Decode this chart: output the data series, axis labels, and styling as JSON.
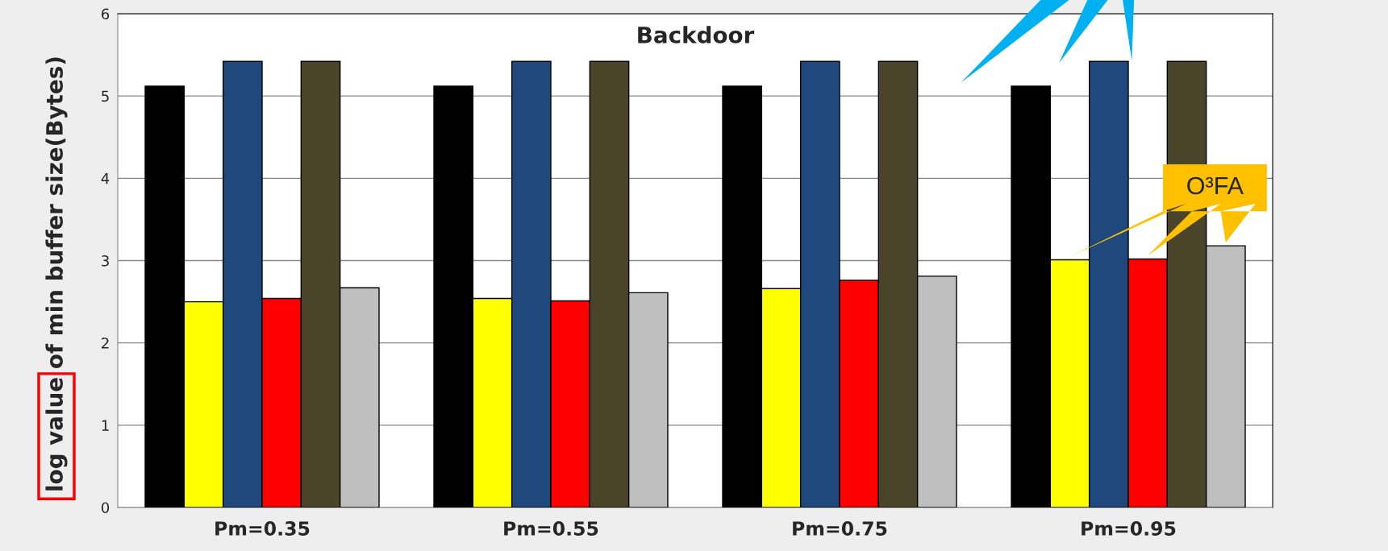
{
  "chart_data": {
    "type": "bar",
    "title": "Backdoor",
    "ylabel": "log value of min buffer size(Bytes)",
    "categories": [
      "Pm=0.35",
      "Pm=0.55",
      "Pm=0.75",
      "Pm=0.95"
    ],
    "series": [
      {
        "color": "#000000",
        "values": [
          5.12,
          5.12,
          5.12,
          5.12
        ]
      },
      {
        "color": "#ffff00",
        "values": [
          2.5,
          2.54,
          2.66,
          3.01
        ]
      },
      {
        "color": "#1f497d",
        "values": [
          5.42,
          5.42,
          5.42,
          5.42
        ]
      },
      {
        "color": "#ff0000",
        "values": [
          2.54,
          2.51,
          2.76,
          3.02
        ]
      },
      {
        "color": "#4a452a",
        "values": [
          5.42,
          5.42,
          5.42,
          5.42
        ]
      },
      {
        "color": "#bfbfbf",
        "values": [
          2.67,
          2.61,
          2.81,
          3.18
        ]
      }
    ],
    "ylim": [
      0,
      6
    ],
    "yticks": [
      0,
      1,
      2,
      3,
      4,
      5,
      6
    ],
    "grid": "y",
    "legend": false,
    "annotations": [
      "O³FA"
    ]
  }
}
